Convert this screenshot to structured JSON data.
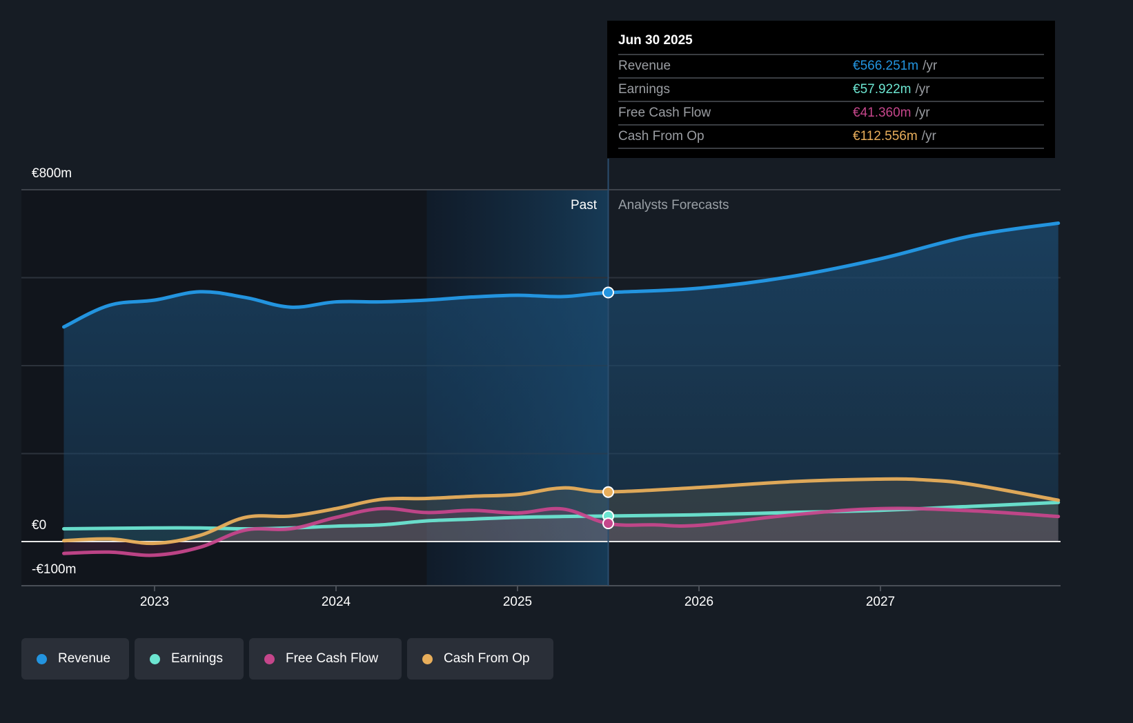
{
  "tooltip": {
    "date": "Jun 30 2025",
    "rows": [
      {
        "name": "Revenue",
        "value": "€566.251m",
        "unit": "/yr",
        "color": "#2394df"
      },
      {
        "name": "Earnings",
        "value": "€57.922m",
        "unit": "/yr",
        "color": "#6ce5d1"
      },
      {
        "name": "Free Cash Flow",
        "value": "€41.360m",
        "unit": "/yr",
        "color": "#c5468b"
      },
      {
        "name": "Cash From Op",
        "value": "€112.556m",
        "unit": "/yr",
        "color": "#e8ae5b"
      }
    ]
  },
  "legend": [
    {
      "label": "Revenue",
      "color": "#2394df"
    },
    {
      "label": "Earnings",
      "color": "#6ce5d1"
    },
    {
      "label": "Free Cash Flow",
      "color": "#c5468b"
    },
    {
      "label": "Cash From Op",
      "color": "#e8ae5b"
    }
  ],
  "chart_data": {
    "type": "area",
    "title": "",
    "xlabel": "",
    "ylabel": "",
    "currency": "EUR",
    "xlim": [
      2022.25,
      2027.98
    ],
    "ylim": [
      -100,
      800
    ],
    "y_ticks": [
      {
        "value": 800,
        "label": "€800m"
      },
      {
        "value": 0,
        "label": "€0"
      },
      {
        "value": -100,
        "label": "-€100m"
      }
    ],
    "y_gridlines": [
      800,
      600,
      400,
      200,
      0
    ],
    "x_ticks": [
      {
        "value": 2023,
        "label": "2023"
      },
      {
        "value": 2024,
        "label": "2024"
      },
      {
        "value": 2025,
        "label": "2025"
      },
      {
        "value": 2026,
        "label": "2026"
      },
      {
        "value": 2027,
        "label": "2027"
      }
    ],
    "highlight_start": 2024.5,
    "divider": 2025.5,
    "regions": {
      "past": "Past",
      "forecast": "Analysts Forecasts"
    },
    "legend_position": "bottom-left",
    "series": [
      {
        "name": "Revenue",
        "color": "#2394df",
        "x": [
          2022.5,
          2022.75,
          2023.0,
          2023.25,
          2023.5,
          2023.75,
          2024.0,
          2024.25,
          2024.5,
          2024.75,
          2025.0,
          2025.25,
          2025.5,
          2026.0,
          2026.5,
          2027.0,
          2027.5,
          2027.98
        ],
        "values": [
          488,
          537,
          549,
          568,
          555,
          533,
          545,
          545,
          549,
          556,
          560,
          557,
          566,
          576,
          602,
          643,
          695,
          724
        ]
      },
      {
        "name": "Earnings",
        "color": "#6ce5d1",
        "x": [
          2022.5,
          2023.0,
          2023.25,
          2023.5,
          2023.75,
          2024.0,
          2024.25,
          2024.5,
          2024.75,
          2025.0,
          2025.25,
          2025.5,
          2026.0,
          2026.5,
          2027.0,
          2027.5,
          2027.98
        ],
        "values": [
          29,
          31,
          31,
          29,
          31,
          35,
          38,
          47,
          51,
          55,
          57,
          58,
          61,
          66,
          71,
          80,
          89
        ]
      },
      {
        "name": "Free Cash Flow",
        "color": "#c5468b",
        "x": [
          2022.5,
          2022.75,
          2023.0,
          2023.25,
          2023.5,
          2023.75,
          2024.0,
          2024.25,
          2024.5,
          2024.75,
          2025.0,
          2025.25,
          2025.5,
          2025.75,
          2026.0,
          2026.5,
          2027.0,
          2027.5,
          2027.98
        ],
        "values": [
          -27,
          -24,
          -31,
          -13,
          26,
          29,
          55,
          75,
          66,
          71,
          65,
          74,
          41,
          38,
          37,
          60,
          75,
          70,
          57
        ]
      },
      {
        "name": "Cash From Op",
        "color": "#e8ae5b",
        "x": [
          2022.5,
          2022.75,
          2023.0,
          2023.25,
          2023.5,
          2023.75,
          2024.0,
          2024.25,
          2024.5,
          2024.75,
          2025.0,
          2025.25,
          2025.5,
          2026.0,
          2026.5,
          2027.0,
          2027.25,
          2027.5,
          2027.98
        ],
        "values": [
          2,
          6,
          -4,
          14,
          55,
          58,
          75,
          96,
          98,
          103,
          107,
          122,
          113,
          123,
          136,
          142,
          140,
          130,
          94
        ]
      }
    ],
    "highlighted_point": {
      "x": 2025.5,
      "label": "Jun 30 2025",
      "values": {
        "Revenue": 566.251,
        "Earnings": 57.922,
        "Free Cash Flow": 41.36,
        "Cash From Op": 112.556
      }
    }
  }
}
